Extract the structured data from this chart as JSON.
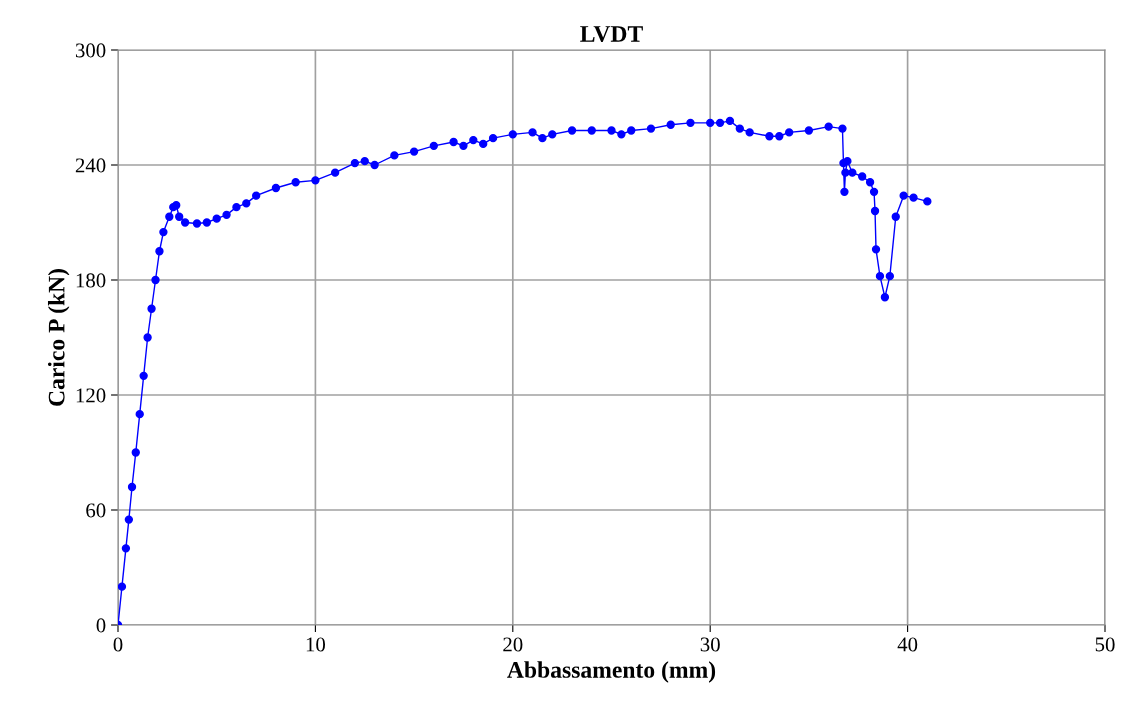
{
  "chart_data": {
    "type": "line",
    "title": "LVDT",
    "xlabel": "Abbassamento (mm)",
    "ylabel": "Carico P (kN)",
    "xlim": [
      0,
      50
    ],
    "xticks": [
      0,
      10,
      20,
      30,
      40,
      50
    ],
    "ylim": [
      0,
      300
    ],
    "yticks": [
      0,
      60,
      120,
      180,
      240,
      300
    ],
    "grid": true,
    "marker": "circle",
    "line_style": "solid",
    "series": [
      {
        "color": "#0000ff",
        "x": [
          0,
          0.2,
          0.4,
          0.55,
          0.71,
          0.9,
          1.1,
          1.3,
          1.5,
          1.7,
          1.9,
          2.1,
          2.3,
          2.6,
          2.8,
          2.95,
          3.1,
          3.4,
          4,
          4.5,
          5,
          5.5,
          6,
          6.5,
          7,
          8,
          9,
          10,
          11,
          12,
          12.5,
          13,
          14,
          15,
          16,
          17,
          17.5,
          18,
          18.5,
          19,
          20,
          21,
          21.5,
          22,
          23,
          24,
          25,
          25.5,
          26,
          27,
          28,
          29,
          30,
          30.5,
          31,
          31.5,
          32,
          33,
          33.5,
          34,
          35,
          36,
          36.7,
          36.75,
          36.8,
          36.85,
          36.95,
          37.2,
          37.7,
          38.1,
          38.3,
          38.35,
          38.4,
          38.6,
          38.85,
          39.1,
          39.4,
          39.8,
          40.3,
          41.0
        ],
        "values": [
          0,
          20,
          40,
          55,
          72,
          90,
          110,
          130,
          150,
          165,
          180,
          195,
          205,
          213,
          218,
          219,
          213,
          210,
          209.5,
          210,
          212,
          214,
          218,
          220,
          224,
          228,
          231,
          232,
          236,
          241,
          242,
          240,
          245,
          247,
          250,
          252,
          250,
          253,
          251,
          254,
          256,
          257,
          254,
          256,
          258,
          258,
          258,
          256,
          258,
          259,
          261,
          262,
          262,
          262,
          263,
          259,
          257,
          255,
          255,
          257,
          258,
          260,
          259,
          241,
          226,
          236,
          242,
          236,
          234,
          231,
          226,
          216,
          196,
          182,
          171,
          182,
          213,
          224,
          223,
          221
        ]
      }
    ]
  }
}
